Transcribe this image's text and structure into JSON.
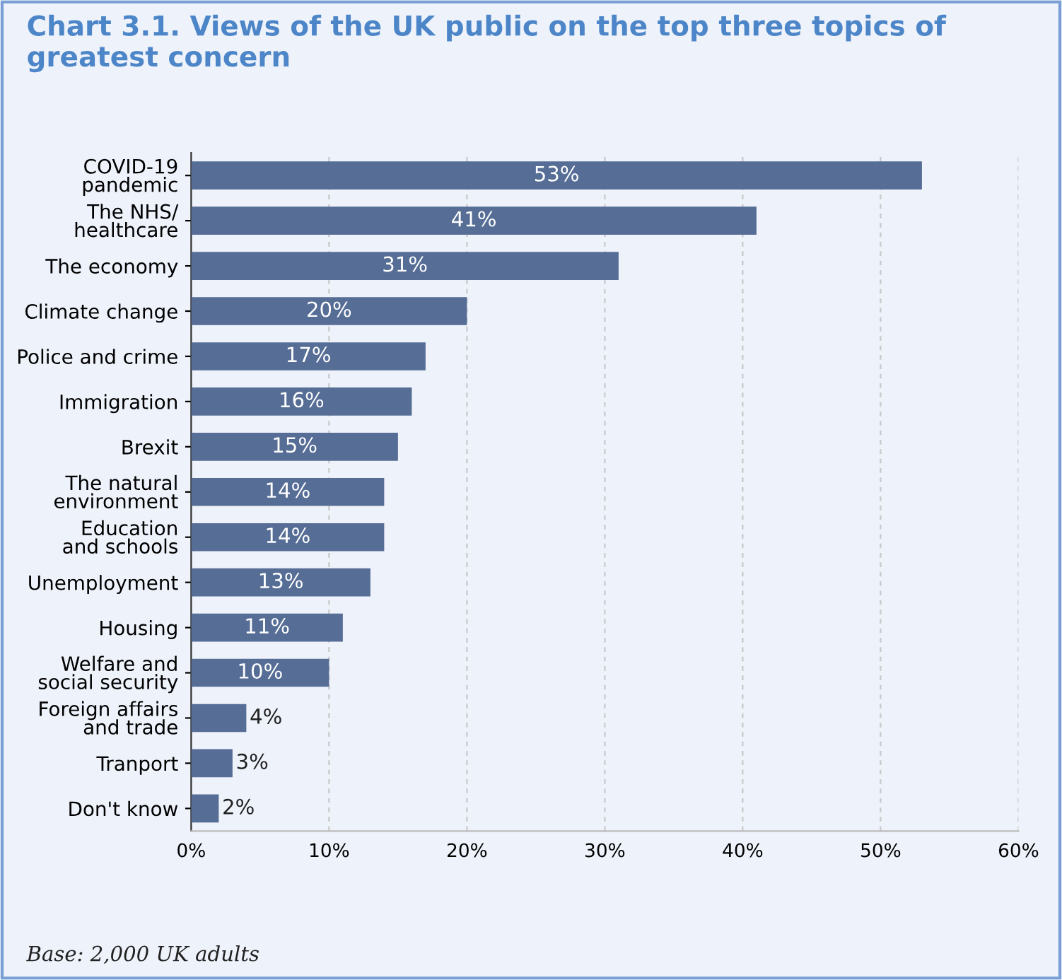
{
  "chart_data": {
    "type": "bar",
    "orientation": "horizontal",
    "title": "Chart 3.1. Views of the UK public on the top three topics of greatest concern",
    "categories": [
      "COVID-19\npandemic",
      "The NHS/\nhealthcare",
      "The economy",
      "Climate change",
      "Police and crime",
      "Immigration",
      "Brexit",
      "The natural\nenvironment",
      "Education\nand schools",
      "Unemployment",
      "Housing",
      "Welfare and\nsocial security",
      "Foreign affairs\nand trade",
      "Tranport",
      "Don't know"
    ],
    "values": [
      53,
      41,
      31,
      20,
      17,
      16,
      15,
      14,
      14,
      13,
      11,
      10,
      4,
      3,
      2
    ],
    "value_labels": [
      "53%",
      "41%",
      "31%",
      "20%",
      "17%",
      "16%",
      "15%",
      "14%",
      "14%",
      "13%",
      "11%",
      "10%",
      "4%",
      "3%",
      "2%"
    ],
    "color": "#566d96",
    "xlim": [
      0,
      60
    ],
    "xticks": [
      {
        "value": 0,
        "label": "0%"
      },
      {
        "value": 10,
        "label": "10%"
      },
      {
        "value": 20,
        "label": "20%"
      },
      {
        "value": 30,
        "label": "30%"
      },
      {
        "value": 40,
        "label": "40%"
      },
      {
        "value": 50,
        "label": "50%"
      },
      {
        "value": 60,
        "label": "60%"
      }
    ],
    "grid": "x",
    "legend": false,
    "annotations": [
      "Base: 2,000 UK adults"
    ]
  }
}
